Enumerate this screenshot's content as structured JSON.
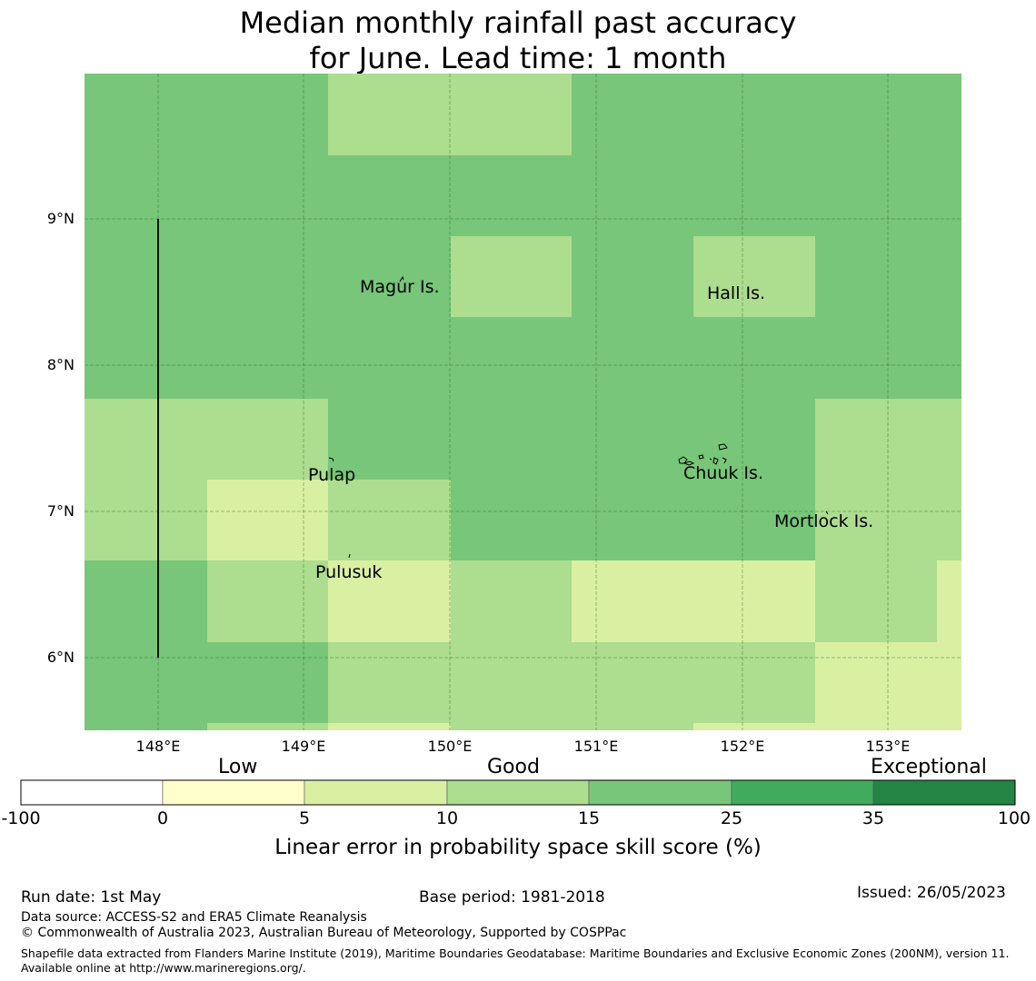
{
  "title_line1": "Median monthly rainfall past accuracy",
  "title_line2": "for June. Lead time: 1 month",
  "map": {
    "lon_range": [
      147.5,
      153.5
    ],
    "lat_range": [
      5.5,
      10.0
    ],
    "x_ticks": [
      "148°E",
      "149°E",
      "150°E",
      "151°E",
      "152°E",
      "153°E"
    ],
    "y_ticks": [
      "9°N",
      "8°N",
      "7°N",
      "6°N"
    ],
    "grid": true,
    "colors": {
      "c1": "#d9f0a3",
      "c2": "#addd8e",
      "c3": "#78c679"
    },
    "places": [
      {
        "name": "Magur Is.",
        "lon": 149.65,
        "lat": 8.52
      },
      {
        "name": "Hall Is.",
        "lon": 151.85,
        "lat": 8.48
      },
      {
        "name": "Pulap",
        "lon": 149.2,
        "lat": 7.23
      },
      {
        "name": "Chuuk Is.",
        "lon": 151.85,
        "lat": 7.25
      },
      {
        "name": "Mortlock Is.",
        "lon": 152.6,
        "lat": 6.92
      },
      {
        "name": "Pulusuk",
        "lon": 149.33,
        "lat": 6.58
      }
    ]
  },
  "legend": {
    "categories": [
      "Low",
      "Good",
      "Exceptional"
    ],
    "ticks": [
      "-100",
      "0",
      "5",
      "10",
      "15",
      "25",
      "35",
      "100"
    ],
    "colors": [
      "#ffffff",
      "#ffffcc",
      "#d9f0a3",
      "#addd8e",
      "#78c679",
      "#41ab5d",
      "#238443"
    ],
    "label": "Linear error in probability space skill score (%)"
  },
  "footer": {
    "run_date": "Run date: 1st May",
    "base_period": "Base period: 1981-2018",
    "issued": "Issued: 26/05/2023",
    "data_source": "Data source: ACCESS-S2 and ERA5 Climate Reanalysis",
    "copyright": "© Commonwealth of Australia 2023, Australian Bureau of Meteorology, Supported by COSPPac",
    "shapefile": "Shapefile data extracted from Flanders Marine Institute (2019), Maritime Boundaries Geodatabase: Maritime Boundaries and Exclusive Economic Zones (200NM), version 11. Available online at http://www.marineregions.org/."
  }
}
